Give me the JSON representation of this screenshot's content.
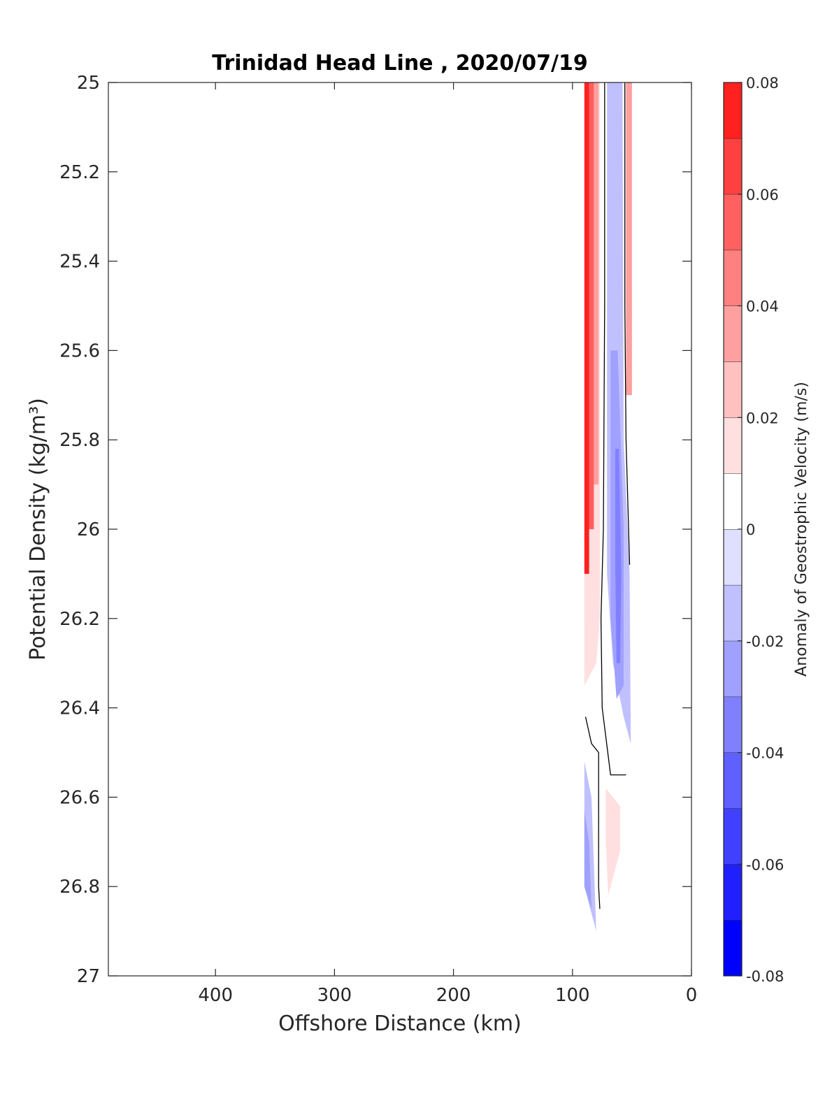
{
  "chart_data": {
    "type": "heatmap",
    "title": "Trinidad Head Line , 2020/07/19",
    "xlabel": "Offshore Distance (km)",
    "ylabel": "Potential Density (kg/m³)",
    "xlim": [
      490,
      0
    ],
    "ylim": [
      25,
      27
    ],
    "x_reversed": true,
    "y_reversed": true,
    "xticks": [
      400,
      300,
      200,
      100,
      0
    ],
    "xtick_labels": [
      "400",
      "300",
      "200",
      "100",
      "0"
    ],
    "yticks": [
      25,
      25.2,
      25.4,
      25.6,
      25.8,
      26,
      26.2,
      26.4,
      26.6,
      26.8,
      27
    ],
    "ytick_labels": [
      "25",
      "25.2",
      "25.4",
      "25.6",
      "25.8",
      "26",
      "26.2",
      "26.4",
      "26.6",
      "26.8",
      "27"
    ],
    "colorbar": {
      "label": "Anomaly of Geostrophic Velocity (m/s)",
      "range": [
        -0.08,
        0.08
      ],
      "levels": [
        -0.08,
        -0.07,
        -0.06,
        -0.05,
        -0.04,
        -0.03,
        -0.02,
        -0.01,
        0,
        0.01,
        0.02,
        0.03,
        0.04,
        0.05,
        0.06,
        0.07,
        0.08
      ],
      "ticks": [
        0.08,
        0.06,
        0.04,
        0.02,
        0,
        -0.02,
        -0.04,
        -0.06,
        -0.08
      ],
      "tick_labels": [
        "0.08",
        "0.06",
        "0.04",
        "0.02",
        "0",
        "-0.02",
        "-0.04",
        "-0.06",
        "-0.08"
      ],
      "colors": [
        "#0000ff",
        "#2020ff",
        "#4040ff",
        "#6060ff",
        "#8080ff",
        "#a0a0ff",
        "#c0c0ff",
        "#dfdfff",
        "#ffffff",
        "#ffffff",
        "#ffdfdf",
        "#ffc0c0",
        "#ffa0a0",
        "#ff8080",
        "#ff6060",
        "#ff4040",
        "#ff2020",
        "#ff0000"
      ]
    },
    "regions": [
      {
        "name": "positive-core",
        "value": 0.075,
        "polygon": [
          [
            90,
            25
          ],
          [
            86,
            25
          ],
          [
            86,
            26.1
          ],
          [
            90,
            26.1
          ]
        ]
      },
      {
        "name": "positive-inner",
        "value": 0.055,
        "polygon": [
          [
            86,
            25
          ],
          [
            82,
            25
          ],
          [
            82,
            26.0
          ],
          [
            86,
            26.0
          ]
        ]
      },
      {
        "name": "positive-mid",
        "value": 0.035,
        "polygon": [
          [
            82,
            25
          ],
          [
            78,
            25
          ],
          [
            78,
            25.9
          ],
          [
            82,
            25.9
          ]
        ]
      },
      {
        "name": "positive-edge",
        "value": 0.015,
        "polygon": [
          [
            90,
            25
          ],
          [
            77,
            25
          ],
          [
            77,
            26.2
          ],
          [
            80,
            26.3
          ],
          [
            90,
            26.35
          ]
        ]
      },
      {
        "name": "positive-nearshore-strip",
        "value": 0.035,
        "polygon": [
          [
            55,
            25
          ],
          [
            50,
            25
          ],
          [
            50,
            25.7
          ],
          [
            55,
            25.7
          ]
        ]
      },
      {
        "name": "positive-deep-patch",
        "value": 0.012,
        "polygon": [
          [
            72,
            26.58
          ],
          [
            60,
            26.62
          ],
          [
            60,
            26.72
          ],
          [
            70,
            26.82
          ],
          [
            72,
            26.7
          ]
        ]
      },
      {
        "name": "negative-outer",
        "value": -0.012,
        "polygon": [
          [
            71,
            25
          ],
          [
            58,
            25
          ],
          [
            57,
            25.8
          ],
          [
            52,
            26.1
          ],
          [
            51,
            26.48
          ],
          [
            57,
            26.42
          ],
          [
            66,
            26.3
          ],
          [
            71,
            26.1
          ]
        ]
      },
      {
        "name": "negative-mid",
        "value": -0.025,
        "polygon": [
          [
            68,
            25.6
          ],
          [
            62,
            25.6
          ],
          [
            57,
            26.0
          ],
          [
            57,
            26.35
          ],
          [
            63,
            26.38
          ],
          [
            68,
            26.2
          ]
        ]
      },
      {
        "name": "negative-core",
        "value": -0.038,
        "polygon": [
          [
            64,
            25.82
          ],
          [
            61,
            25.82
          ],
          [
            59,
            26.1
          ],
          [
            60,
            26.3
          ],
          [
            63,
            26.3
          ],
          [
            64,
            26.1
          ]
        ]
      },
      {
        "name": "negative-deep-outer",
        "value": -0.012,
        "polygon": [
          [
            90,
            26.52
          ],
          [
            84,
            26.6
          ],
          [
            80,
            26.9
          ],
          [
            90,
            26.8
          ]
        ]
      },
      {
        "name": "negative-deep-core",
        "value": -0.028,
        "polygon": [
          [
            90,
            26.63
          ],
          [
            86,
            26.7
          ],
          [
            84,
            26.85
          ],
          [
            90,
            26.8
          ]
        ]
      }
    ],
    "zero_contours": [
      [
        [
          73,
          25
        ],
        [
          73,
          25.5
        ],
        [
          74,
          26.0
        ],
        [
          76,
          26.2
        ],
        [
          75,
          26.4
        ],
        [
          68,
          26.55
        ],
        [
          55,
          26.55
        ]
      ],
      [
        [
          56,
          25
        ],
        [
          56,
          25.5
        ],
        [
          55,
          25.8
        ],
        [
          52,
          26.08
        ]
      ],
      [
        [
          89,
          26.42
        ],
        [
          84,
          26.48
        ],
        [
          78,
          26.5
        ],
        [
          78,
          26.8
        ],
        [
          77,
          26.85
        ]
      ]
    ]
  }
}
